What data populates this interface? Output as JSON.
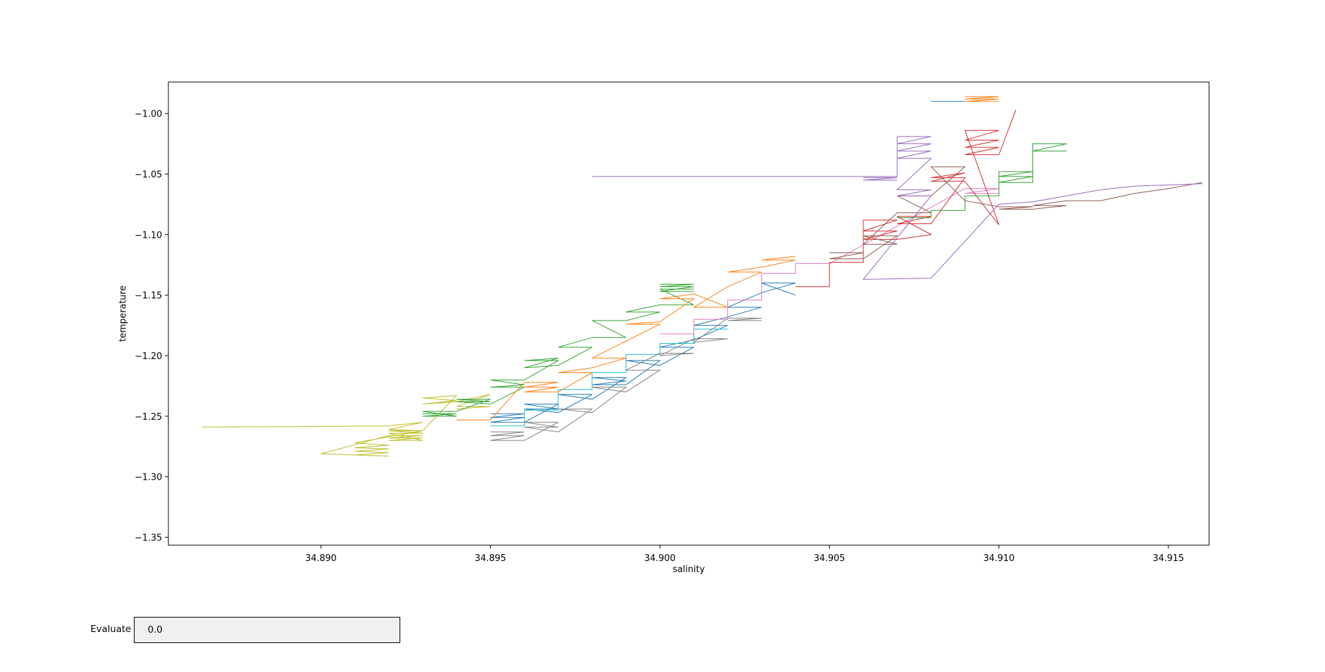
{
  "chart_data": {
    "type": "line",
    "title": "",
    "xlabel": "salinity",
    "ylabel": "temperature",
    "xlim": [
      34.8855,
      34.9162
    ],
    "ylim": [
      -1.3565,
      -0.974
    ],
    "x_ticks": [
      34.89,
      34.895,
      34.9,
      34.905,
      34.91,
      34.915
    ],
    "x_tick_labels": [
      "34.890",
      "34.895",
      "34.900",
      "34.905",
      "34.910",
      "34.915"
    ],
    "y_ticks": [
      -1.0,
      -1.05,
      -1.1,
      -1.15,
      -1.2,
      -1.25,
      -1.3,
      -1.35
    ],
    "y_tick_labels": [
      "−1.00",
      "−1.05",
      "−1.10",
      "−1.15",
      "−1.20",
      "−1.25",
      "−1.30",
      "−1.35"
    ],
    "grid": false,
    "legend": "none",
    "colors": [
      "#1f77b4",
      "#ff7f0e",
      "#2ca02c",
      "#d62728",
      "#9467bd",
      "#8c564b",
      "#e377c2",
      "#7f7f7f",
      "#bcbd22",
      "#17becf"
    ],
    "series": [
      {
        "color": "#bcbd22",
        "x": [
          34.8865,
          34.892,
          34.893,
          34.892,
          34.893,
          34.891,
          34.892,
          34.891,
          34.892,
          34.891,
          34.892,
          34.891,
          34.892,
          34.89,
          34.892,
          34.893,
          34.892,
          34.893,
          34.892,
          34.893,
          34.892,
          34.893,
          34.892,
          34.893,
          34.894,
          34.893,
          34.894,
          34.893,
          34.894,
          34.895,
          34.894,
          34.895,
          34.894
        ],
        "y": [
          -1.259,
          -1.258,
          -1.255,
          -1.261,
          -1.262,
          -1.272,
          -1.274,
          -1.276,
          -1.277,
          -1.279,
          -1.28,
          -1.282,
          -1.283,
          -1.281,
          -1.266,
          -1.266,
          -1.268,
          -1.268,
          -1.27,
          -1.27,
          -1.264,
          -1.264,
          -1.262,
          -1.262,
          -1.233,
          -1.235,
          -1.237,
          -1.24,
          -1.238,
          -1.232,
          -1.242,
          -1.242,
          -1.244
        ]
      },
      {
        "color": "#2ca02c",
        "x": [
          34.893,
          34.894,
          34.893,
          34.894,
          34.893,
          34.894,
          34.895,
          34.894,
          34.895,
          34.894,
          34.895,
          34.896,
          34.895,
          34.896,
          34.895,
          34.896,
          34.897,
          34.896,
          34.897,
          34.896,
          34.897,
          34.898,
          34.897,
          34.898,
          34.899,
          34.898,
          34.899,
          34.9,
          34.899,
          34.9,
          34.901,
          34.9,
          34.901
        ],
        "y": [
          -1.248,
          -1.248,
          -1.25,
          -1.25,
          -1.246,
          -1.246,
          -1.236,
          -1.236,
          -1.238,
          -1.238,
          -1.24,
          -1.226,
          -1.226,
          -1.224,
          -1.22,
          -1.22,
          -1.204,
          -1.204,
          -1.202,
          -1.21,
          -1.208,
          -1.193,
          -1.193,
          -1.185,
          -1.185,
          -1.171,
          -1.171,
          -1.164,
          -1.164,
          -1.158,
          -1.158,
          -1.145,
          -1.145
        ]
      },
      {
        "color": "#2ca02c",
        "x": [
          34.9,
          34.901,
          34.9,
          34.901,
          34.9,
          34.901
        ],
        "y": [
          -1.141,
          -1.141,
          -1.143,
          -1.143,
          -1.147,
          -1.147
        ]
      },
      {
        "color": "#1f77b4",
        "x": [
          34.895,
          34.896,
          34.895,
          34.896,
          34.895,
          34.896,
          34.897,
          34.896,
          34.897,
          34.896,
          34.897,
          34.898,
          34.897,
          34.898,
          34.899,
          34.898,
          34.899,
          34.898,
          34.899,
          34.9,
          34.899,
          34.9,
          34.901,
          34.9,
          34.901,
          34.902,
          34.901,
          34.902,
          34.903,
          34.902,
          34.903,
          34.904,
          34.903,
          34.904
        ],
        "y": [
          -1.248,
          -1.248,
          -1.251,
          -1.251,
          -1.255,
          -1.255,
          -1.24,
          -1.24,
          -1.244,
          -1.244,
          -1.247,
          -1.232,
          -1.232,
          -1.236,
          -1.218,
          -1.218,
          -1.221,
          -1.224,
          -1.224,
          -1.204,
          -1.204,
          -1.208,
          -1.193,
          -1.193,
          -1.187,
          -1.175,
          -1.175,
          -1.168,
          -1.16,
          -1.16,
          -1.148,
          -1.14,
          -1.14,
          -1.15
        ]
      },
      {
        "color": "#17becf",
        "x": [
          34.895,
          34.896,
          34.896,
          34.897,
          34.897,
          34.898,
          34.898,
          34.899,
          34.899,
          34.9,
          34.9,
          34.901,
          34.901,
          34.902
        ],
        "y": [
          -1.258,
          -1.258,
          -1.245,
          -1.245,
          -1.228,
          -1.228,
          -1.214,
          -1.214,
          -1.199,
          -1.199,
          -1.19,
          -1.19,
          -1.178,
          -1.178
        ]
      },
      {
        "color": "#7f7f7f",
        "x": [
          34.895,
          34.896,
          34.895,
          34.896,
          34.895,
          34.896,
          34.897,
          34.896,
          34.897,
          34.896,
          34.897,
          34.898,
          34.897,
          34.898,
          34.899,
          34.898,
          34.899,
          34.9,
          34.899,
          34.9,
          34.901,
          34.9,
          34.901,
          34.902,
          34.901,
          34.902,
          34.903,
          34.902,
          34.903
        ],
        "y": [
          -1.263,
          -1.263,
          -1.266,
          -1.266,
          -1.27,
          -1.27,
          -1.255,
          -1.255,
          -1.259,
          -1.259,
          -1.263,
          -1.244,
          -1.244,
          -1.247,
          -1.226,
          -1.226,
          -1.23,
          -1.212,
          -1.212,
          -1.198,
          -1.198,
          -1.2,
          -1.186,
          -1.186,
          -1.189,
          -1.169,
          -1.169,
          -1.171,
          -1.171
        ]
      },
      {
        "color": "#ff7f0e",
        "x": [
          34.894,
          34.895,
          34.896,
          34.897,
          34.896,
          34.897,
          34.896,
          34.897,
          34.898,
          34.897,
          34.898,
          34.899,
          34.898,
          34.899,
          34.9,
          34.899,
          34.9,
          34.901,
          34.9,
          34.901,
          34.902,
          34.901,
          34.902,
          34.903,
          34.902,
          34.903,
          34.904,
          34.903,
          34.904
        ],
        "y": [
          -1.253,
          -1.253,
          -1.222,
          -1.222,
          -1.226,
          -1.226,
          -1.23,
          -1.23,
          -1.214,
          -1.214,
          -1.21,
          -1.202,
          -1.202,
          -1.188,
          -1.174,
          -1.174,
          -1.172,
          -1.153,
          -1.153,
          -1.149,
          -1.16,
          -1.16,
          -1.143,
          -1.131,
          -1.131,
          -1.127,
          -1.121,
          -1.121,
          -1.118
        ]
      },
      {
        "color": "#e377c2",
        "x": [
          34.9,
          34.901,
          34.901,
          34.902,
          34.902,
          34.903,
          34.903,
          34.904,
          34.904,
          34.905,
          34.909,
          34.91,
          34.909,
          34.91
        ],
        "y": [
          -1.182,
          -1.182,
          -1.17,
          -1.17,
          -1.154,
          -1.154,
          -1.132,
          -1.132,
          -1.124,
          -1.124,
          -1.062,
          -1.062,
          -1.066,
          -1.066
        ]
      },
      {
        "color": "#d62728",
        "x": [
          34.904,
          34.905,
          34.905,
          34.906,
          34.906,
          34.907,
          34.906,
          34.907,
          34.906,
          34.907,
          34.908,
          34.907,
          34.908,
          34.907,
          34.908,
          34.909,
          34.908,
          34.909,
          34.908,
          34.909,
          34.91,
          34.909,
          34.91,
          34.909,
          34.91,
          34.909,
          34.91,
          34.909,
          34.91,
          34.9105
        ],
        "y": [
          -1.143,
          -1.143,
          -1.123,
          -1.123,
          -1.088,
          -1.088,
          -1.097,
          -1.097,
          -1.104,
          -1.104,
          -1.1,
          -1.085,
          -1.085,
          -1.091,
          -1.091,
          -1.053,
          -1.053,
          -1.049,
          -1.056,
          -1.056,
          -1.092,
          -1.014,
          -1.014,
          -1.022,
          -1.022,
          -1.028,
          -1.028,
          -1.034,
          -1.034,
          -0.997
        ]
      },
      {
        "color": "#8c564b",
        "x": [
          34.905,
          34.906,
          34.905,
          34.906,
          34.907,
          34.906,
          34.907,
          34.906,
          34.907,
          34.908,
          34.907,
          34.908,
          34.909,
          34.908,
          34.909,
          34.91,
          34.911,
          34.91,
          34.911,
          34.912,
          34.911,
          34.912,
          34.913,
          34.914,
          34.915,
          34.916
        ],
        "y": [
          -1.115,
          -1.115,
          -1.12,
          -1.12,
          -1.101,
          -1.101,
          -1.108,
          -1.108,
          -1.082,
          -1.082,
          -1.068,
          -1.068,
          -1.044,
          -1.044,
          -1.072,
          -1.077,
          -1.077,
          -1.079,
          -1.079,
          -1.076,
          -1.076,
          -1.072,
          -1.072,
          -1.066,
          -1.062,
          -1.057
        ]
      },
      {
        "color": "#9467bd",
        "x": [
          34.898,
          34.907,
          34.907,
          34.908,
          34.907,
          34.908,
          34.907,
          34.908,
          34.907,
          34.908,
          34.907,
          34.908,
          34.907,
          34.908,
          34.906,
          34.908,
          34.91,
          34.911,
          34.912,
          34.913,
          34.914,
          34.915,
          34.916
        ],
        "y": [
          -1.052,
          -1.052,
          -1.019,
          -1.019,
          -1.025,
          -1.025,
          -1.031,
          -1.031,
          -1.037,
          -1.037,
          -1.063,
          -1.063,
          -1.068,
          -1.068,
          -1.137,
          -1.136,
          -1.075,
          -1.073,
          -1.068,
          -1.063,
          -1.06,
          -1.059,
          -1.058
        ]
      },
      {
        "color": "#9467bd",
        "x": [
          34.906,
          34.907,
          34.906,
          34.907
        ],
        "y": [
          -1.053,
          -1.053,
          -1.055,
          -1.055
        ]
      },
      {
        "color": "#1f77b4",
        "x": [
          34.908,
          34.909
        ],
        "y": [
          -0.99,
          -0.99
        ]
      },
      {
        "color": "#ff7f0e",
        "x": [
          34.909,
          34.91,
          34.909,
          34.91,
          34.909,
          34.91
        ],
        "y": [
          -0.986,
          -0.986,
          -0.988,
          -0.988,
          -0.99,
          -0.99
        ]
      },
      {
        "color": "#2ca02c",
        "x": [
          34.907,
          34.908,
          34.908,
          34.909,
          34.909,
          34.91,
          34.91,
          34.911,
          34.91,
          34.911,
          34.91,
          34.911,
          34.911,
          34.912,
          34.911,
          34.912
        ],
        "y": [
          -1.086,
          -1.086,
          -1.08,
          -1.08,
          -1.068,
          -1.068,
          -1.048,
          -1.048,
          -1.052,
          -1.052,
          -1.057,
          -1.057,
          -1.025,
          -1.025,
          -1.031,
          -1.031
        ]
      }
    ]
  },
  "widget": {
    "label": "Evaluate",
    "value": "0.0"
  }
}
